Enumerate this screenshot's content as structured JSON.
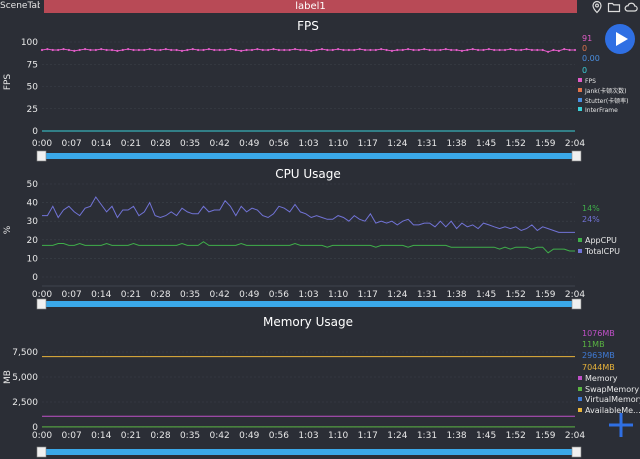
{
  "header": {
    "scene_tab": "SceneTab",
    "label": "label1",
    "icons": [
      "location-pin-icon",
      "folder-icon",
      "cloud-icon"
    ]
  },
  "controls": {
    "play_icon": "play-icon",
    "plus_icon": "plus-icon"
  },
  "time_ticks": [
    "0:00",
    "0:07",
    "0:14",
    "0:21",
    "0:28",
    "0:35",
    "0:42",
    "0:49",
    "0:56",
    "1:03",
    "1:10",
    "1:17",
    "1:24",
    "1:31",
    "1:38",
    "1:45",
    "1:52",
    "1:59",
    "2:04"
  ],
  "colors": {
    "background": "#2b2e36",
    "fps": "#e05cc6",
    "jank": "#e0734a",
    "stutter": "#4a8fe0",
    "interframe": "#3ad0d8",
    "app_cpu": "#3fae4a",
    "total_cpu": "#7173d6",
    "memory": "#c050c8",
    "swap_memory": "#5ab442",
    "virtual_memory": "#3f7bd6",
    "available_memory": "#e8b33a",
    "slider": "#3aa8e8"
  },
  "chart_data": [
    {
      "type": "line",
      "title": "FPS",
      "ylabel": "FPS",
      "ylim": [
        0,
        100
      ],
      "yticks": [
        "0",
        "25",
        "50",
        "75",
        "100"
      ],
      "series": [
        {
          "name": "FPS",
          "current": "91",
          "values": [
            91,
            92,
            91,
            91,
            92,
            91,
            90,
            91,
            92,
            91,
            91,
            92,
            91,
            91,
            90,
            91,
            92,
            91,
            91,
            91,
            92,
            91,
            91,
            92,
            91,
            91,
            90,
            91,
            92,
            91,
            91,
            92,
            91,
            91,
            91,
            92,
            91,
            90,
            91,
            91,
            92,
            91,
            91,
            92,
            91,
            91,
            91,
            92,
            91,
            91,
            90,
            91,
            92,
            91,
            91,
            92,
            91,
            91,
            91,
            92,
            91,
            91,
            91,
            92,
            91,
            90,
            91,
            91,
            92,
            91,
            91,
            92,
            91,
            91,
            91,
            92,
            91,
            91,
            90,
            91,
            92,
            91,
            91,
            92,
            91,
            91,
            91,
            92,
            91,
            91,
            92,
            91,
            91,
            91,
            89,
            91,
            90,
            92,
            91,
            91
          ]
        },
        {
          "name": "Jank(卡顿次数)",
          "current": "0"
        },
        {
          "name": "Stutter(卡顿率)",
          "current": "0.00"
        },
        {
          "name": "InterFrame",
          "current": "0",
          "values": [
            0,
            0
          ]
        }
      ]
    },
    {
      "type": "line",
      "title": "CPU Usage",
      "ylabel": "%",
      "ylim": [
        0,
        50
      ],
      "yticks": [
        "0",
        "10",
        "20",
        "30",
        "40",
        "50"
      ],
      "series": [
        {
          "name": "AppCPU",
          "current": "14%",
          "values": [
            17,
            17,
            17,
            18,
            18,
            17,
            17,
            18,
            17,
            17,
            17,
            17,
            18,
            17,
            17,
            17,
            17,
            18,
            17,
            17,
            17,
            17,
            17,
            17,
            17,
            17,
            18,
            17,
            17,
            17,
            19,
            17,
            17,
            17,
            17,
            17,
            17,
            18,
            17,
            17,
            17,
            17,
            17,
            17,
            17,
            17,
            17,
            18,
            17,
            17,
            17,
            17,
            17,
            16,
            17,
            17,
            17,
            17,
            17,
            17,
            17,
            17,
            16,
            17,
            17,
            17,
            17,
            17,
            16,
            17,
            17,
            17,
            17,
            17,
            17,
            17,
            16,
            16,
            16,
            16,
            16,
            16,
            16,
            16,
            16,
            15,
            16,
            15,
            16,
            16,
            16,
            15,
            16,
            16,
            13,
            15,
            15,
            15,
            14,
            14
          ]
        },
        {
          "name": "TotalCPU",
          "current": "24%",
          "values": [
            33,
            33,
            38,
            32,
            36,
            38,
            35,
            33,
            37,
            38,
            43,
            39,
            35,
            38,
            32,
            36,
            36,
            38,
            33,
            35,
            40,
            33,
            32,
            33,
            35,
            33,
            37,
            35,
            34,
            34,
            38,
            35,
            36,
            36,
            41,
            38,
            33,
            38,
            35,
            37,
            36,
            33,
            32,
            34,
            38,
            37,
            35,
            39,
            35,
            34,
            32,
            33,
            32,
            31,
            31,
            33,
            32,
            30,
            33,
            31,
            30,
            34,
            29,
            30,
            29,
            30,
            28,
            30,
            31,
            28,
            28,
            29,
            29,
            27,
            30,
            27,
            30,
            26,
            29,
            27,
            28,
            26,
            29,
            28,
            27,
            26,
            27,
            26,
            27,
            25,
            26,
            28,
            25,
            27,
            26,
            25,
            24,
            24,
            24,
            24
          ]
        }
      ]
    },
    {
      "type": "line",
      "title": "Memory Usage",
      "ylabel": "MB",
      "ylim": [
        0,
        9000
      ],
      "yticks": [
        "0",
        "2,500",
        "5,000",
        "7,500"
      ],
      "series": [
        {
          "name": "Memory",
          "current": "1076MB",
          "values": [
            1076,
            1076
          ]
        },
        {
          "name": "SwapMemory",
          "current": "11MB",
          "values": [
            11,
            11
          ]
        },
        {
          "name": "VirtualMemory",
          "current": "2963MB"
        },
        {
          "name": "AvailableMe...",
          "current": "7044MB",
          "values": [
            7044,
            7044
          ]
        }
      ]
    }
  ]
}
